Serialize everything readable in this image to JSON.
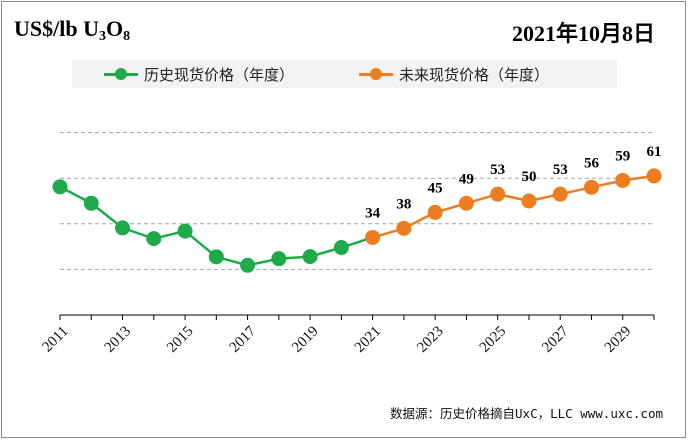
{
  "header": {
    "unit_prefix": "US$/lb U",
    "unit_sub1": "3",
    "unit_mid": "O",
    "unit_sub2": "8",
    "date": "2021年10月8日"
  },
  "legend": {
    "historical": "历史现货价格（年度）",
    "forecast": "未来现货价格（年度）"
  },
  "source": "数据源：历史价格摘自UxC，LLC  www.uxc.com",
  "colors": {
    "historical": "#1faa4a",
    "forecast": "#ed7d1f",
    "gridline": "#a6a6a6",
    "axis": "#000000"
  },
  "chart_data": {
    "type": "line",
    "title": "",
    "xlabel": "",
    "ylabel": "US$/lb U3O8",
    "x_tick_labels": [
      "2011",
      "2013",
      "2015",
      "2017",
      "2019",
      "2021",
      "2023",
      "2025",
      "2027",
      "2029"
    ],
    "ylim": [
      0,
      100
    ],
    "grid": true,
    "legend_position": "top",
    "series": [
      {
        "name": "历史现货价格（年度）",
        "color": "#1faa4a",
        "x": [
          2011,
          2012,
          2013,
          2014,
          2015,
          2016,
          2017,
          2018,
          2019,
          2020
        ],
        "values": [
          56.2,
          49.0,
          38.2,
          33.5,
          36.8,
          25.5,
          21.8,
          24.7,
          25.6,
          29.6
        ]
      },
      {
        "name": "未来现货价格（年度）",
        "color": "#ed7d1f",
        "x": [
          2021,
          2022,
          2023,
          2024,
          2025,
          2026,
          2027,
          2028,
          2029,
          2030
        ],
        "values": [
          34,
          38,
          45,
          49,
          53,
          50,
          53,
          56,
          59,
          61
        ],
        "data_labels": [
          "34",
          "38",
          "45",
          "49",
          "53",
          "50",
          "53",
          "56",
          "59",
          "61"
        ]
      }
    ],
    "connector": {
      "from_x": 2020,
      "from_y": 29.6,
      "to_x": 2021,
      "to_y": 34,
      "color": "#1faa4a"
    }
  }
}
